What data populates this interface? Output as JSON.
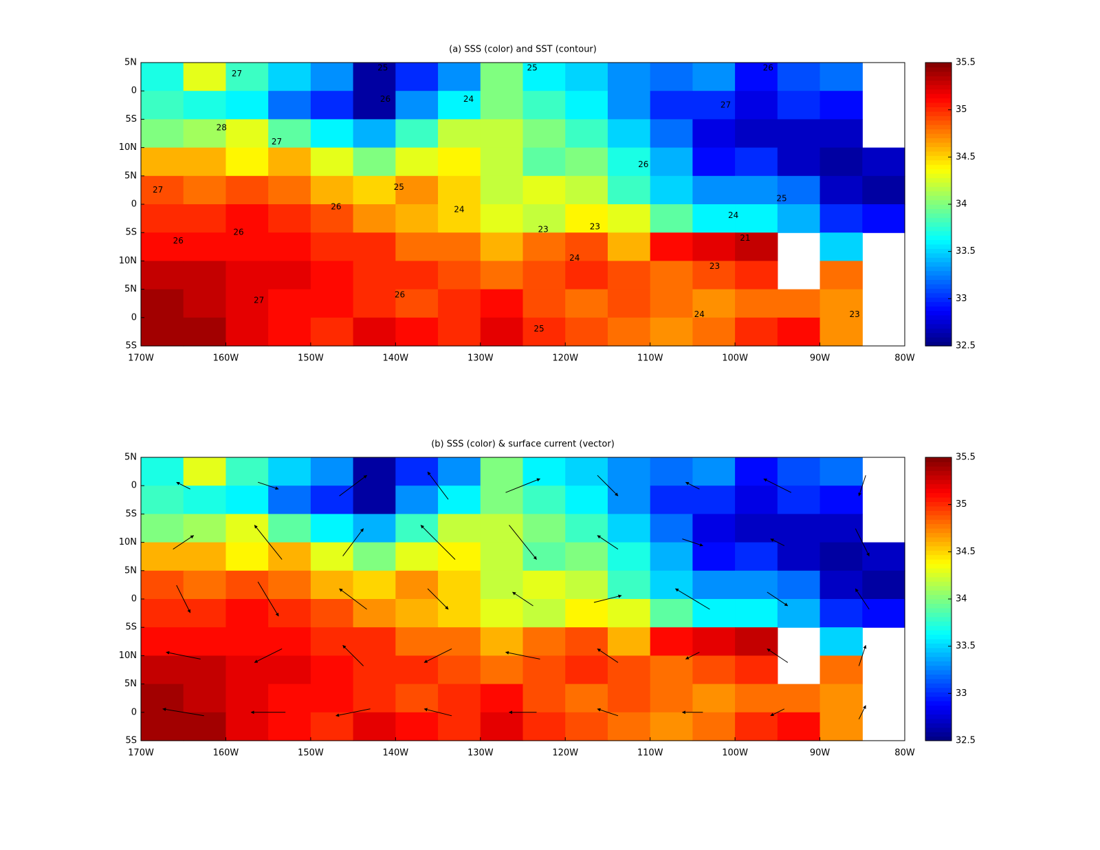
{
  "chart_data": [
    {
      "type": "contour-map",
      "title": "(a) SSS (color) and SST (contour)",
      "xlim": [
        -170,
        -80
      ],
      "xticks": [
        {
          "value": -170,
          "label": "170W"
        },
        {
          "value": -160,
          "label": "160W"
        },
        {
          "value": -150,
          "label": "150W"
        },
        {
          "value": -140,
          "label": "140W"
        },
        {
          "value": -130,
          "label": "130W"
        },
        {
          "value": -120,
          "label": "120W"
        },
        {
          "value": -110,
          "label": "110W"
        },
        {
          "value": -100,
          "label": "100W"
        },
        {
          "value": -90,
          "label": "90W"
        },
        {
          "value": -80,
          "label": "80W"
        }
      ],
      "ylim": [
        0,
        10
      ],
      "yticks": [
        {
          "value": 10,
          "label": "5N"
        },
        {
          "value": 9,
          "label": "0"
        },
        {
          "value": 8,
          "label": "5S"
        },
        {
          "value": 7,
          "label": "10N"
        },
        {
          "value": 6,
          "label": "5N"
        },
        {
          "value": 5,
          "label": "0"
        },
        {
          "value": 4,
          "label": "5S"
        },
        {
          "value": 3,
          "label": "10N"
        },
        {
          "value": 2,
          "label": "5N"
        },
        {
          "value": 1,
          "label": "0"
        },
        {
          "value": 0,
          "label": "5S"
        }
      ],
      "clim": [
        32.5,
        35.5
      ],
      "cticks": [
        32.5,
        33,
        33.5,
        34,
        34.5,
        35,
        35.5
      ],
      "colormap": "jet",
      "z": [
        [
          33.7,
          34.3,
          33.8,
          33.5,
          33.3,
          32.6,
          33.0,
          33.3,
          34.0,
          33.6,
          33.5,
          33.3,
          33.2,
          33.3,
          32.9,
          33.1,
          33.2,
          null
        ],
        [
          33.8,
          33.7,
          33.6,
          33.2,
          33.0,
          32.6,
          33.3,
          33.6,
          34.0,
          33.8,
          33.6,
          33.3,
          33.0,
          33.0,
          32.8,
          33.0,
          32.9,
          null
        ],
        [
          34.0,
          34.1,
          34.3,
          33.9,
          33.6,
          33.4,
          33.8,
          34.2,
          34.2,
          34.0,
          33.8,
          33.5,
          33.2,
          32.8,
          32.7,
          32.7,
          32.7,
          null
        ],
        [
          34.6,
          34.6,
          34.4,
          34.6,
          34.3,
          34.0,
          34.3,
          34.4,
          34.2,
          33.9,
          34.0,
          33.7,
          33.4,
          32.9,
          33.0,
          32.7,
          32.6,
          32.7
        ],
        [
          34.9,
          34.8,
          34.9,
          34.8,
          34.6,
          34.5,
          34.7,
          34.5,
          34.2,
          34.3,
          34.2,
          33.8,
          33.5,
          33.3,
          33.3,
          33.2,
          32.7,
          32.6
        ],
        [
          35.0,
          35.0,
          35.1,
          35.0,
          34.9,
          34.7,
          34.6,
          34.5,
          34.3,
          34.2,
          34.4,
          34.3,
          33.9,
          33.6,
          33.6,
          33.4,
          33.0,
          32.9
        ],
        [
          35.1,
          35.1,
          35.1,
          35.1,
          35.0,
          35.0,
          34.8,
          34.8,
          34.6,
          34.8,
          34.9,
          34.6,
          35.1,
          35.2,
          35.3,
          null,
          33.5,
          null
        ],
        [
          35.3,
          35.3,
          35.2,
          35.2,
          35.1,
          35.0,
          35.0,
          34.9,
          34.8,
          34.9,
          35.0,
          34.9,
          34.8,
          34.9,
          35.0,
          null,
          34.8,
          null
        ],
        [
          35.4,
          35.3,
          35.2,
          35.1,
          35.1,
          35.0,
          34.9,
          35.0,
          35.1,
          34.9,
          34.8,
          34.9,
          34.8,
          34.7,
          34.8,
          34.8,
          34.7,
          null
        ],
        [
          35.4,
          35.4,
          35.2,
          35.1,
          35.0,
          35.2,
          35.1,
          35.0,
          35.2,
          35.0,
          34.9,
          34.8,
          34.7,
          34.8,
          35.0,
          35.1,
          34.7,
          null
        ]
      ],
      "contour_labels": [
        {
          "x": -158.7,
          "y": 9.6,
          "value": 27
        },
        {
          "x": -141.2,
          "y": 8.7,
          "value": 26
        },
        {
          "x": -131.4,
          "y": 8.7,
          "value": 24
        },
        {
          "x": -123.9,
          "y": 9.8,
          "value": 25
        },
        {
          "x": -141.5,
          "y": 9.8,
          "value": 25
        },
        {
          "x": -160.5,
          "y": 7.7,
          "value": 28
        },
        {
          "x": -154.0,
          "y": 7.2,
          "value": 27
        },
        {
          "x": -168.0,
          "y": 5.5,
          "value": 27
        },
        {
          "x": -165.6,
          "y": 3.7,
          "value": 26
        },
        {
          "x": -158.5,
          "y": 4.0,
          "value": 26
        },
        {
          "x": -139.6,
          "y": 5.6,
          "value": 25
        },
        {
          "x": -147.0,
          "y": 4.9,
          "value": 26
        },
        {
          "x": -132.5,
          "y": 4.8,
          "value": 24
        },
        {
          "x": -122.6,
          "y": 4.1,
          "value": 23
        },
        {
          "x": -118.9,
          "y": 3.1,
          "value": 24
        },
        {
          "x": -116.5,
          "y": 4.2,
          "value": 23
        },
        {
          "x": -110.8,
          "y": 6.4,
          "value": 26
        },
        {
          "x": -100.2,
          "y": 4.6,
          "value": 24
        },
        {
          "x": -98.8,
          "y": 3.8,
          "value": 21
        },
        {
          "x": -102.4,
          "y": 2.8,
          "value": 23
        },
        {
          "x": -104.2,
          "y": 1.1,
          "value": 24
        },
        {
          "x": -85.9,
          "y": 1.1,
          "value": 23
        },
        {
          "x": -123.1,
          "y": 0.6,
          "value": 25
        },
        {
          "x": -139.5,
          "y": 1.8,
          "value": 26
        },
        {
          "x": -156.1,
          "y": 1.6,
          "value": 27
        },
        {
          "x": -101.1,
          "y": 8.5,
          "value": 27
        },
        {
          "x": -96.1,
          "y": 9.8,
          "value": 26
        },
        {
          "x": -94.5,
          "y": 5.2,
          "value": 25
        }
      ]
    },
    {
      "type": "quiver-map",
      "title": "(b) SSS (color) & surface current (vector)",
      "xlim": [
        -170,
        -80
      ],
      "xticks": [
        {
          "value": -170,
          "label": "170W"
        },
        {
          "value": -160,
          "label": "160W"
        },
        {
          "value": -150,
          "label": "150W"
        },
        {
          "value": -140,
          "label": "140W"
        },
        {
          "value": -130,
          "label": "130W"
        },
        {
          "value": -120,
          "label": "120W"
        },
        {
          "value": -110,
          "label": "110W"
        },
        {
          "value": -100,
          "label": "100W"
        },
        {
          "value": -90,
          "label": "90W"
        },
        {
          "value": -80,
          "label": "80W"
        }
      ],
      "ylim": [
        0,
        10
      ],
      "yticks": [
        {
          "value": 10,
          "label": "5N"
        },
        {
          "value": 9,
          "label": "0"
        },
        {
          "value": 8,
          "label": "5S"
        },
        {
          "value": 7,
          "label": "10N"
        },
        {
          "value": 6,
          "label": "5N"
        },
        {
          "value": 5,
          "label": "0"
        },
        {
          "value": 4,
          "label": "5S"
        },
        {
          "value": 3,
          "label": "10N"
        },
        {
          "value": 2,
          "label": "5N"
        },
        {
          "value": 1,
          "label": "0"
        },
        {
          "value": 0,
          "label": "5S"
        }
      ],
      "clim": [
        32.5,
        35.5
      ],
      "cticks": [
        32.5,
        33,
        33.5,
        34,
        34.5,
        35,
        35.5
      ],
      "colormap": "jet",
      "z": [
        [
          33.7,
          34.3,
          33.8,
          33.5,
          33.3,
          32.6,
          33.0,
          33.3,
          34.0,
          33.6,
          33.5,
          33.3,
          33.2,
          33.3,
          32.9,
          33.1,
          33.2,
          null
        ],
        [
          33.8,
          33.7,
          33.6,
          33.2,
          33.0,
          32.6,
          33.3,
          33.6,
          34.0,
          33.8,
          33.6,
          33.3,
          33.0,
          33.0,
          32.8,
          33.0,
          32.9,
          null
        ],
        [
          34.0,
          34.1,
          34.3,
          33.9,
          33.6,
          33.4,
          33.8,
          34.2,
          34.2,
          34.0,
          33.8,
          33.5,
          33.2,
          32.8,
          32.7,
          32.7,
          32.7,
          null
        ],
        [
          34.6,
          34.6,
          34.4,
          34.6,
          34.3,
          34.0,
          34.3,
          34.4,
          34.2,
          33.9,
          34.0,
          33.7,
          33.4,
          32.9,
          33.0,
          32.7,
          32.6,
          32.7
        ],
        [
          34.9,
          34.8,
          34.9,
          34.8,
          34.6,
          34.5,
          34.7,
          34.5,
          34.2,
          34.3,
          34.2,
          33.8,
          33.5,
          33.3,
          33.3,
          33.2,
          32.7,
          32.6
        ],
        [
          35.0,
          35.0,
          35.1,
          35.0,
          34.9,
          34.7,
          34.6,
          34.5,
          34.3,
          34.2,
          34.4,
          34.3,
          33.9,
          33.6,
          33.6,
          33.4,
          33.0,
          32.9
        ],
        [
          35.1,
          35.1,
          35.1,
          35.1,
          35.0,
          35.0,
          34.8,
          34.8,
          34.6,
          34.8,
          34.9,
          34.6,
          35.1,
          35.2,
          35.3,
          null,
          33.5,
          null
        ],
        [
          35.3,
          35.3,
          35.2,
          35.2,
          35.1,
          35.0,
          35.0,
          34.9,
          34.8,
          34.9,
          35.0,
          34.9,
          34.8,
          34.9,
          35.0,
          null,
          34.8,
          null
        ],
        [
          35.4,
          35.3,
          35.2,
          35.1,
          35.1,
          35.0,
          34.9,
          35.0,
          35.1,
          34.9,
          34.8,
          34.9,
          34.8,
          34.7,
          34.8,
          34.8,
          34.7,
          null
        ],
        [
          35.4,
          35.4,
          35.2,
          35.1,
          35.0,
          35.2,
          35.1,
          35.0,
          35.2,
          35.0,
          34.9,
          34.8,
          34.7,
          34.8,
          35.0,
          35.1,
          34.7,
          null
        ]
      ],
      "u": [
        [
          -0.2,
          0.3,
          0.4,
          -0.3,
          0.5,
          0.3,
          -0.2,
          -0.4,
          -0.1
        ],
        [
          0.3,
          -0.4,
          0.3,
          -0.5,
          0.4,
          -0.3,
          0.3,
          -0.2,
          0.2
        ],
        [
          0.2,
          0.3,
          -0.4,
          0.3,
          -0.3,
          0.4,
          -0.5,
          0.3,
          -0.2
        ],
        [
          -0.5,
          -0.4,
          -0.3,
          -0.4,
          -0.5,
          -0.3,
          -0.2,
          -0.3,
          0.1
        ],
        [
          -0.6,
          -0.5,
          -0.5,
          -0.4,
          -0.4,
          -0.3,
          -0.3,
          -0.2,
          0.1
        ]
      ],
      "v": [
        [
          0.1,
          -0.1,
          0.3,
          0.4,
          0.2,
          -0.3,
          0.1,
          0.2,
          -0.3
        ],
        [
          0.2,
          0.5,
          0.4,
          0.5,
          -0.5,
          0.2,
          -0.1,
          0.1,
          -0.4
        ],
        [
          -0.4,
          -0.5,
          0.3,
          -0.3,
          0.2,
          0.1,
          0.3,
          -0.2,
          0.3
        ],
        [
          0.1,
          -0.2,
          0.3,
          -0.2,
          0.1,
          0.2,
          -0.1,
          0.2,
          0.3
        ],
        [
          0.1,
          0.0,
          -0.1,
          0.1,
          0.0,
          0.1,
          0.0,
          -0.1,
          0.2
        ]
      ]
    }
  ]
}
